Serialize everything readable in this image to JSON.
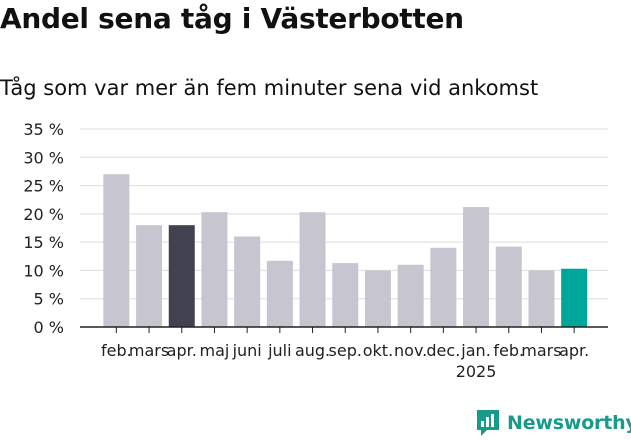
{
  "title": "Andel sena tåg i Västerbotten",
  "subtitle": "Tåg som var mer än fem minuter sena vid ankomst",
  "brand": {
    "name": "Newsworthy",
    "color": "#1a9a8a"
  },
  "colors": {
    "default": "#c7c6d0",
    "highlight_dark": "#42414f",
    "highlight_accent": "#00a69a",
    "grid": "#dddddd",
    "axis": "#222222"
  },
  "chart_data": {
    "type": "bar",
    "categories": [
      "feb.",
      "mars",
      "apr.",
      "maj",
      "juni",
      "juli",
      "aug.",
      "sep.",
      "okt.",
      "nov.",
      "dec.",
      "jan.",
      "feb.",
      "mars",
      "apr."
    ],
    "year_label": "2025",
    "year_label_under_index": 11,
    "values": [
      27,
      18,
      18,
      20.3,
      16,
      11.7,
      20.3,
      11.3,
      10,
      11,
      14,
      21.2,
      14.2,
      10,
      10.3
    ],
    "highlight": {
      "2": "dark",
      "14": "accent"
    },
    "ylim": [
      0,
      35
    ],
    "yticks": [
      0,
      5,
      10,
      15,
      20,
      25,
      30,
      35
    ],
    "ytick_labels": [
      "0 %",
      "5 %",
      "10 %",
      "15 %",
      "20 %",
      "25 %",
      "30 %",
      "35 %"
    ],
    "grid": true
  }
}
